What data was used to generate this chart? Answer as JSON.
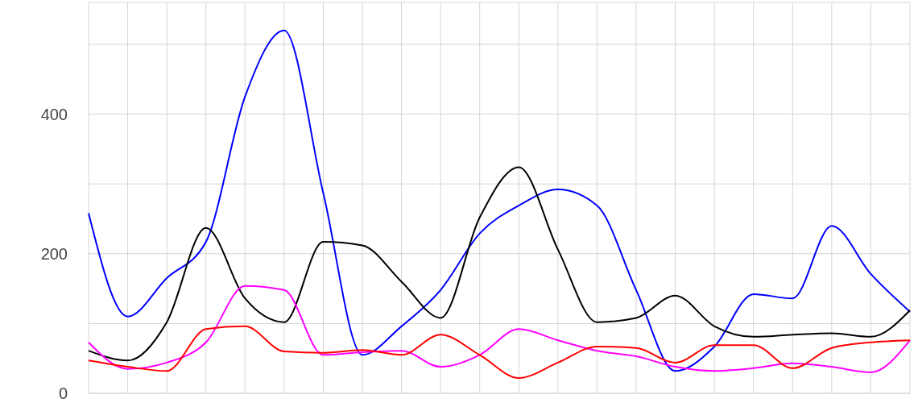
{
  "chart_data": {
    "type": "line",
    "categories": [
      null,
      null,
      null,
      null,
      null,
      null,
      null,
      null,
      null,
      null,
      null,
      null,
      null,
      null,
      null,
      null,
      null,
      null,
      null,
      null,
      null,
      null
    ],
    "series": [
      {
        "color": "#0000ff",
        "values": [
          258,
          110,
          165,
          217,
          425,
          520,
          287,
          55,
          96,
          148,
          229,
          269,
          292,
          269,
          148,
          32,
          67,
          142,
          136,
          240,
          171,
          117
        ]
      },
      {
        "color": "#000000",
        "values": [
          61,
          47,
          102,
          237,
          136,
          102,
          217,
          212,
          160,
          108,
          252,
          324,
          206,
          102,
          108,
          140,
          96,
          81,
          84,
          86,
          81,
          119
        ]
      },
      {
        "color": "#ff00ff",
        "values": [
          73,
          35,
          44,
          73,
          154,
          148,
          55,
          59,
          61,
          38,
          55,
          92,
          76,
          61,
          53,
          38,
          32,
          36,
          43,
          38,
          30,
          76
        ]
      },
      {
        "color": "#ff0000",
        "values": [
          47,
          38,
          32,
          92,
          96,
          60,
          58,
          62,
          55,
          84,
          55,
          22,
          44,
          67,
          65,
          44,
          69,
          69,
          36,
          65,
          73,
          76
        ]
      }
    ],
    "ylim": [
      0,
      560
    ],
    "yticks": [
      0,
      {
        "value": 100,
        "label": null
      },
      200,
      {
        "value": 300,
        "label": null
      },
      400,
      {
        "value": 500,
        "label": null
      }
    ],
    "grid": true,
    "legend": false,
    "marker": "none",
    "line_style": "solid"
  }
}
